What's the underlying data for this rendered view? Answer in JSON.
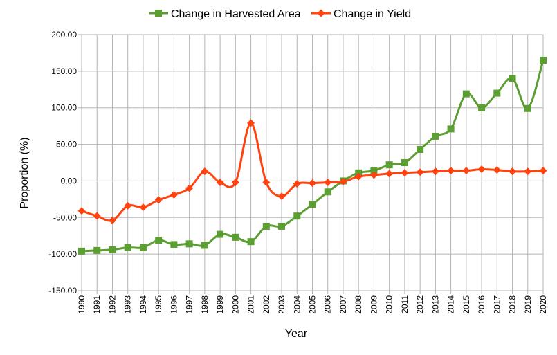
{
  "chart_data": {
    "type": "line",
    "title": "",
    "xlabel": "Year",
    "ylabel": "Proportion (%)",
    "ylim": [
      -150,
      200
    ],
    "ytick_step": 50,
    "y_tick_labels": [
      "200.00",
      "150.00",
      "100.00",
      "50.00",
      "0.00",
      "-50.00",
      "-100.00",
      "-150.00"
    ],
    "x": [
      1990,
      1991,
      1992,
      1993,
      1994,
      1995,
      1996,
      1997,
      1998,
      1999,
      2000,
      2001,
      2002,
      2003,
      2004,
      2005,
      2006,
      2007,
      2008,
      2009,
      2010,
      2011,
      2012,
      2013,
      2014,
      2015,
      2016,
      2017,
      2018,
      2019,
      2020
    ],
    "grid": true,
    "smooth": true,
    "legend": "top",
    "series": [
      {
        "name": "Change in Harvested Area",
        "color": "#5b9e32",
        "marker": "square",
        "values": [
          -96,
          -95,
          -94,
          -91,
          -91,
          -81,
          -87,
          -86,
          -88,
          -73,
          -77,
          -83,
          -62,
          -62,
          -48,
          -32,
          -15,
          0,
          11,
          14,
          22,
          25,
          43,
          61,
          71,
          119,
          100,
          120,
          140,
          99,
          165
        ]
      },
      {
        "name": "Change in Yield",
        "color": "#ff420e",
        "marker": "diamond",
        "values": [
          -41,
          -48,
          -54,
          -34,
          -36,
          -26,
          -19,
          -10,
          13,
          -2,
          -2,
          79,
          -2,
          -21,
          -4,
          -3,
          -2,
          -1,
          6,
          8,
          10,
          11,
          12,
          13,
          14,
          14,
          16,
          15,
          13,
          13,
          14
        ]
      }
    ]
  }
}
